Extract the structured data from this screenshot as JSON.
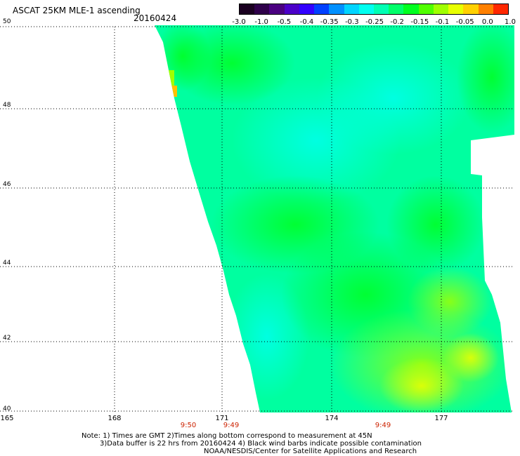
{
  "header": {
    "title": "ASCAT 25KM MLE-1 ascending",
    "date": "20160424"
  },
  "colorbar": {
    "colors": [
      "#1a0020",
      "#2e004a",
      "#4a0080",
      "#4b00c8",
      "#3200ff",
      "#0040ff",
      "#0090ff",
      "#00d4ff",
      "#00fff0",
      "#00ffb4",
      "#00ff6a",
      "#00ff20",
      "#50ff00",
      "#a0ff00",
      "#e8ff00",
      "#ffd000",
      "#ff8000",
      "#ff2800"
    ],
    "tick_labels": [
      "-3.0",
      "-1.0",
      "-0.5",
      "-0.4",
      "-0.35",
      "-0.3",
      "-0.25",
      "-0.2",
      "-0.15",
      "-0.1",
      "-0.05",
      "0.0",
      "1.0"
    ]
  },
  "map": {
    "lat_labels": [
      "50",
      "48",
      "46",
      "44",
      "42",
      "40"
    ],
    "lon_labels": [
      "165",
      "168",
      "171",
      "174",
      "177"
    ],
    "time_labels": [
      "9:50",
      "9:49",
      "9:49"
    ]
  },
  "notes": {
    "line1": "Note: 1) Times are GMT 2)Times along bottom correspond to measurement at 45N",
    "line2": "3)Data buffer is 22 hrs from 20160424 4) Black wind barbs indicate possible contamination",
    "line3": "NOAA/NESDIS/Center for Satellite Applications and Research"
  }
}
